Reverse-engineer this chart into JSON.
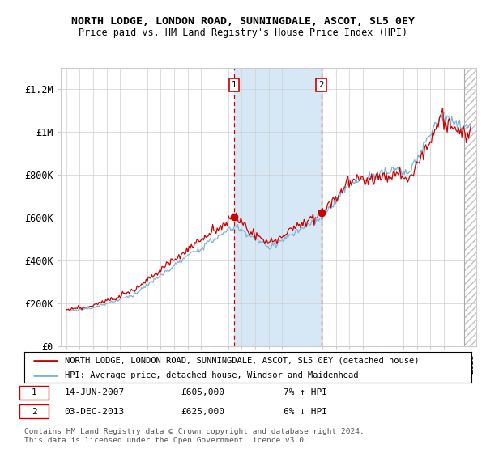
{
  "title": "NORTH LODGE, LONDON ROAD, SUNNINGDALE, ASCOT, SL5 0EY",
  "subtitle": "Price paid vs. HM Land Registry's House Price Index (HPI)",
  "ylabel_ticks": [
    "£0",
    "£200K",
    "£400K",
    "£600K",
    "£800K",
    "£1M",
    "£1.2M"
  ],
  "ytick_values": [
    0,
    200000,
    400000,
    600000,
    800000,
    1000000,
    1200000
  ],
  "ylim": [
    0,
    1300000
  ],
  "sale1_price": 605000,
  "sale1_date": "14-JUN-2007",
  "sale1_pct": "7% ↑ HPI",
  "sale1_x": 2007.45,
  "sale2_price": 625000,
  "sale2_date": "03-DEC-2013",
  "sale2_pct": "6% ↓ HPI",
  "sale2_x": 2013.92,
  "legend_line1": "NORTH LODGE, LONDON ROAD, SUNNINGDALE, ASCOT, SL5 0EY (detached house)",
  "legend_line2": "HPI: Average price, detached house, Windsor and Maidenhead",
  "footnote1": "Contains HM Land Registry data © Crown copyright and database right 2024.",
  "footnote2": "This data is licensed under the Open Government Licence v3.0.",
  "hpi_color": "#7ab4d8",
  "property_color": "#cc0000",
  "shade_color": "#d6e8f5",
  "xlim_left": 1994.6,
  "xlim_right": 2025.4
}
